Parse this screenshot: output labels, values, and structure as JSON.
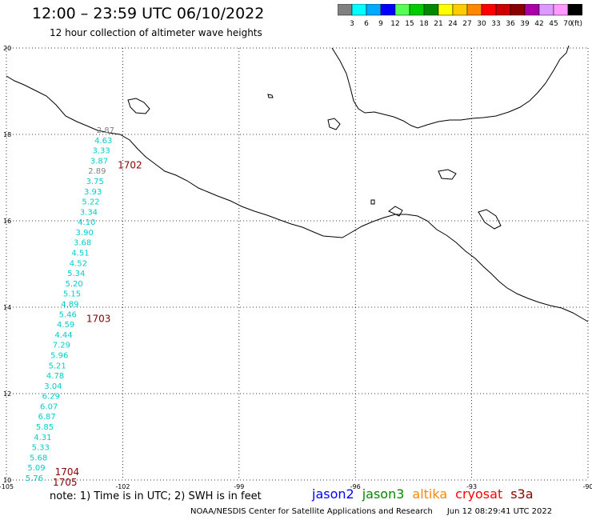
{
  "title": "12:00 – 23:59 UTC 06/10/2022",
  "subtitle": "12 hour collection of altimeter wave heights",
  "colorbar": {
    "unit": "(ft)",
    "labels": [
      "3",
      "6",
      "9",
      "12",
      "15",
      "18",
      "21",
      "24",
      "27",
      "30",
      "33",
      "36",
      "39",
      "42",
      "45",
      "70"
    ],
    "colors": [
      "#808080",
      "#00ffff",
      "#00aaff",
      "#0000ff",
      "#55ff55",
      "#00cc00",
      "#008800",
      "#ffff00",
      "#ffcc00",
      "#ff8800",
      "#ff0000",
      "#cc0000",
      "#880000",
      "#aa00aa",
      "#dd99ff",
      "#ff99ff",
      "#000000"
    ]
  },
  "map": {
    "lat_ticks": [
      "20",
      "18",
      "16",
      "14",
      "12",
      "10"
    ],
    "lon_ticks": [
      "-105",
      "-102",
      "-99",
      "-96",
      "-93",
      "-90"
    ],
    "lat_range": [
      10,
      20
    ],
    "lon_range": [
      -105,
      -90
    ]
  },
  "track_points": [
    {
      "value": "2.87",
      "color": "#808080"
    },
    {
      "value": "4.63",
      "color": "#00cccc"
    },
    {
      "value": "3.33",
      "color": "#00cccc"
    },
    {
      "value": "3.87",
      "color": "#00cccc"
    },
    {
      "value": "2.89",
      "color": "#808080"
    },
    {
      "value": "3.75",
      "color": "#00cccc"
    },
    {
      "value": "3.93",
      "color": "#00cccc"
    },
    {
      "value": "5.22",
      "color": "#00cccc"
    },
    {
      "value": "3.34",
      "color": "#00cccc"
    },
    {
      "value": "4.10",
      "color": "#00cccc"
    },
    {
      "value": "3.90",
      "color": "#00cccc"
    },
    {
      "value": "3.68",
      "color": "#00cccc"
    },
    {
      "value": "4.51",
      "color": "#00cccc"
    },
    {
      "value": "4.52",
      "color": "#00cccc"
    },
    {
      "value": "5.34",
      "color": "#00cccc"
    },
    {
      "value": "5.20",
      "color": "#00cccc"
    },
    {
      "value": "5.15",
      "color": "#00cccc"
    },
    {
      "value": "4.89",
      "color": "#00cccc"
    },
    {
      "value": "5.46",
      "color": "#00cccc"
    },
    {
      "value": "4.59",
      "color": "#00cccc"
    },
    {
      "value": "4.44",
      "color": "#00cccc"
    },
    {
      "value": "7.29",
      "color": "#00cccc"
    },
    {
      "value": "5.96",
      "color": "#00cccc"
    },
    {
      "value": "5.21",
      "color": "#00cccc"
    },
    {
      "value": "4.78",
      "color": "#00cccc"
    },
    {
      "value": "3.04",
      "color": "#00cccc"
    },
    {
      "value": "6.29",
      "color": "#00cccc"
    },
    {
      "value": "6.07",
      "color": "#00cccc"
    },
    {
      "value": "6.87",
      "color": "#00cccc"
    },
    {
      "value": "5.85",
      "color": "#00cccc"
    },
    {
      "value": "4.31",
      "color": "#00cccc"
    },
    {
      "value": "5.33",
      "color": "#00cccc"
    },
    {
      "value": "5.68",
      "color": "#00cccc"
    },
    {
      "value": "5.09",
      "color": "#00cccc"
    },
    {
      "value": "5.76",
      "color": "#00cccc"
    }
  ],
  "time_labels": [
    {
      "text": "1702",
      "after_index": 3
    },
    {
      "text": "1703",
      "after_index": 18
    },
    {
      "text": "1704",
      "after_index": 33
    },
    {
      "text": "1705",
      "after_index": 34
    }
  ],
  "time_label_color": "#880000",
  "note": "note:  1) Time is in UTC;  2) SWH is in feet",
  "satellites": [
    {
      "name": "jason2",
      "color": "#0000ff"
    },
    {
      "name": "jason3",
      "color": "#008800"
    },
    {
      "name": "altika",
      "color": "#ff8800"
    },
    {
      "name": "cryosat",
      "color": "#ff0000"
    },
    {
      "name": "s3a",
      "color": "#880000"
    }
  ],
  "footer": {
    "agency": "NOAA/NESDIS Center for Satellite Applications and Research",
    "generated": "Jun 12 08:29:41 UTC 2022"
  }
}
